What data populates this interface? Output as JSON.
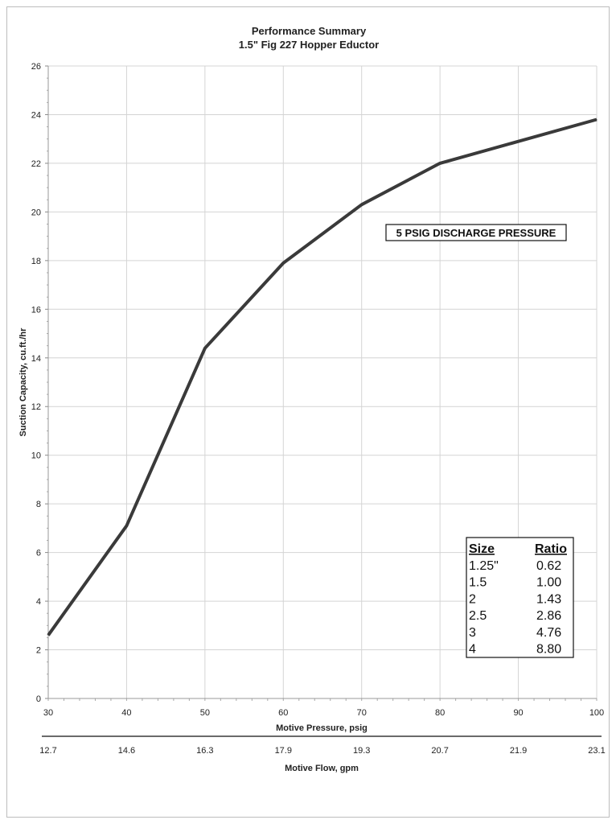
{
  "chart_data": {
    "type": "line",
    "title": "Performance Summary",
    "subtitle": "1.5\" Fig 227 Hopper Eductor",
    "xlabel": "Motive Pressure, psig",
    "ylabel": "Suction Capacity, cu.ft./hr",
    "secondary_xlabel": "Motive Flow, gpm",
    "xlim": [
      30,
      100
    ],
    "ylim": [
      0,
      26
    ],
    "x_ticks": [
      "30",
      "40",
      "50",
      "60",
      "70",
      "80",
      "90",
      "100"
    ],
    "y_ticks": [
      "0",
      "2",
      "4",
      "6",
      "8",
      "10",
      "12",
      "14",
      "16",
      "18",
      "20",
      "22",
      "24",
      "26"
    ],
    "secondary_x_ticks": [
      "12.7",
      "14.6",
      "16.3",
      "17.9",
      "19.3",
      "20.7",
      "21.9",
      "23.1"
    ],
    "grid": true,
    "line_color": "#3a3a3a",
    "series": [
      {
        "x": [
          30,
          40,
          50,
          60,
          70,
          80,
          90,
          100
        ],
        "y": [
          2.6,
          7.1,
          14.4,
          17.9,
          20.3,
          22.0,
          22.9,
          23.8
        ]
      }
    ],
    "annotation": "5 PSIG DISCHARGE PRESSURE",
    "size_table": {
      "headers": [
        "Size",
        "Ratio"
      ],
      "rows": [
        [
          "1.25\"",
          "0.62"
        ],
        [
          "1.5",
          "1.00"
        ],
        [
          "2",
          "1.43"
        ],
        [
          "2.5",
          "2.86"
        ],
        [
          "3",
          "4.76"
        ],
        [
          "4",
          "8.80"
        ]
      ]
    }
  }
}
